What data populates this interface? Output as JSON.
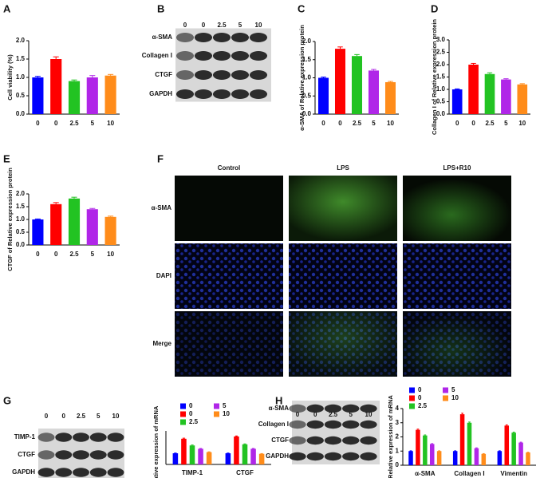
{
  "blots": [
    {
      "panel": "B",
      "lanes": [
        "0",
        "0",
        "2.5",
        "5",
        "10"
      ],
      "bands": [
        "α-SMA",
        "Collagen I",
        "CTGF",
        "GAPDH"
      ]
    },
    {
      "lanes": [
        "0",
        "0",
        "2.5",
        "5",
        "10"
      ],
      "bands": [
        "TIMP-1",
        "CTGF",
        "GAPDH"
      ]
    },
    {
      "lanes": [
        "0",
        "0",
        "2.5",
        "5",
        "10"
      ],
      "bands": [
        "α-SMA",
        "Collagen I",
        "CTGF",
        "GAPDH"
      ]
    }
  ],
  "images": {
    "panel": "F",
    "columns": [
      "Control",
      "LPS",
      "LPS+R10"
    ],
    "rows": [
      "α-SMA",
      "DAPI",
      "Merge"
    ]
  },
  "chart_data": [
    {
      "type": "bar",
      "panel": "A",
      "ylabel": "Cell viability (%)",
      "categories": [
        "0",
        "0",
        "2.5",
        "5",
        "10"
      ],
      "values": [
        1.0,
        1.5,
        0.9,
        1.0,
        1.05
      ],
      "errors": [
        0.03,
        0.06,
        0.03,
        0.05,
        0.03
      ],
      "colors": [
        "#0000ff",
        "#ff0000",
        "#22c322",
        "#b026e8",
        "#ff8c1a"
      ],
      "ylim": [
        0,
        2
      ],
      "yticks": [
        {
          "value": 0,
          "label": "0.0"
        },
        0.5,
        {
          "value": 1,
          "label": "1.0"
        },
        1.5,
        {
          "value": 2,
          "label": "2.0"
        }
      ]
    },
    {
      "type": "bar",
      "panel": "C",
      "ylabel": "α-SMA of Relative expression protein",
      "categories": [
        "0",
        "0",
        "2.5",
        "5",
        "10"
      ],
      "values": [
        1.0,
        1.8,
        1.6,
        1.2,
        0.88
      ],
      "errors": [
        0.02,
        0.05,
        0.04,
        0.03,
        0.02
      ],
      "colors": [
        "#0000ff",
        "#ff0000",
        "#22c322",
        "#b026e8",
        "#ff8c1a"
      ],
      "ylim": [
        0,
        2
      ],
      "yticks": [
        {
          "value": 0,
          "label": "0.0"
        },
        0.5,
        {
          "value": 1,
          "label": "1.0"
        },
        1.5,
        {
          "value": 2,
          "label": "2.0"
        }
      ]
    },
    {
      "type": "bar",
      "panel": "D",
      "ylabel": "Collagen I of Relative expression protein",
      "categories": [
        "0",
        "0",
        "2.5",
        "5",
        "10"
      ],
      "values": [
        1.0,
        2.0,
        1.62,
        1.4,
        1.2
      ],
      "errors": [
        0.02,
        0.05,
        0.05,
        0.03,
        0.03
      ],
      "colors": [
        "#0000ff",
        "#ff0000",
        "#22c322",
        "#b026e8",
        "#ff8c1a"
      ],
      "ylim": [
        0,
        3
      ],
      "yticks": [
        {
          "value": 0,
          "label": "0.0"
        },
        0.5,
        {
          "value": 1,
          "label": "1.0"
        },
        1.5,
        {
          "value": 2,
          "label": "2.0"
        },
        2.5,
        {
          "value": 3,
          "label": "3.0"
        }
      ]
    },
    {
      "type": "bar",
      "panel": "E",
      "ylabel": "CTGF of Relative expression protein",
      "categories": [
        "0",
        "0",
        "2.5",
        "5",
        "10"
      ],
      "values": [
        1.0,
        1.6,
        1.82,
        1.4,
        1.1
      ],
      "errors": [
        0.02,
        0.06,
        0.05,
        0.03,
        0.03
      ],
      "colors": [
        "#0000ff",
        "#ff0000",
        "#22c322",
        "#b026e8",
        "#ff8c1a"
      ],
      "ylim": [
        0,
        2
      ],
      "yticks": [
        {
          "value": 0,
          "label": "0.0"
        },
        0.5,
        {
          "value": 1,
          "label": "1.0"
        },
        1.5,
        {
          "value": 2,
          "label": "2.0"
        }
      ]
    },
    {
      "type": "grouped_bar",
      "panel": "G",
      "ylabel": "Relative expression of mRNA",
      "categories": [
        "TIMP-1",
        "CTGF"
      ],
      "series": [
        {
          "name": "0",
          "color": "#0000ff",
          "values": [
            1.0,
            1.0
          ],
          "errors": [
            0.02,
            0.02
          ]
        },
        {
          "name": "0",
          "color": "#ff0000",
          "values": [
            2.3,
            2.5
          ],
          "errors": [
            0.05,
            0.05
          ]
        },
        {
          "name": "2.5",
          "color": "#22c322",
          "values": [
            1.7,
            1.8
          ],
          "errors": [
            0.04,
            0.04
          ]
        },
        {
          "name": "5",
          "color": "#b026e8",
          "values": [
            1.4,
            1.4
          ],
          "errors": [
            0.03,
            0.03
          ]
        },
        {
          "name": "10",
          "color": "#ff8c1a",
          "values": [
            1.1,
            0.95
          ],
          "errors": [
            0.03,
            0.02
          ]
        }
      ],
      "ylim": [
        0,
        3
      ]
    },
    {
      "type": "grouped_bar",
      "panel": "H",
      "ylabel": "Relative expression of mRNA",
      "categories": [
        "α-SMA",
        "Collagen I",
        "Vimentin"
      ],
      "series": [
        {
          "name": "0",
          "color": "#0000ff",
          "values": [
            1.0,
            1.0,
            1.0
          ],
          "errors": [
            0.02,
            0.02,
            0.02
          ]
        },
        {
          "name": "0",
          "color": "#ff0000",
          "values": [
            2.5,
            3.6,
            2.8
          ],
          "errors": [
            0.05,
            0.07,
            0.05
          ]
        },
        {
          "name": "2.5",
          "color": "#22c322",
          "values": [
            2.1,
            3.0,
            2.3
          ],
          "errors": [
            0.04,
            0.05,
            0.04
          ]
        },
        {
          "name": "5",
          "color": "#b026e8",
          "values": [
            1.5,
            1.2,
            1.6
          ],
          "errors": [
            0.03,
            0.03,
            0.03
          ]
        },
        {
          "name": "10",
          "color": "#ff8c1a",
          "values": [
            1.0,
            0.8,
            0.9
          ],
          "errors": [
            0.02,
            0.02,
            0.02
          ]
        }
      ],
      "ylim": [
        0,
        4
      ],
      "yticks": [
        0,
        1,
        2,
        3,
        4
      ]
    }
  ]
}
